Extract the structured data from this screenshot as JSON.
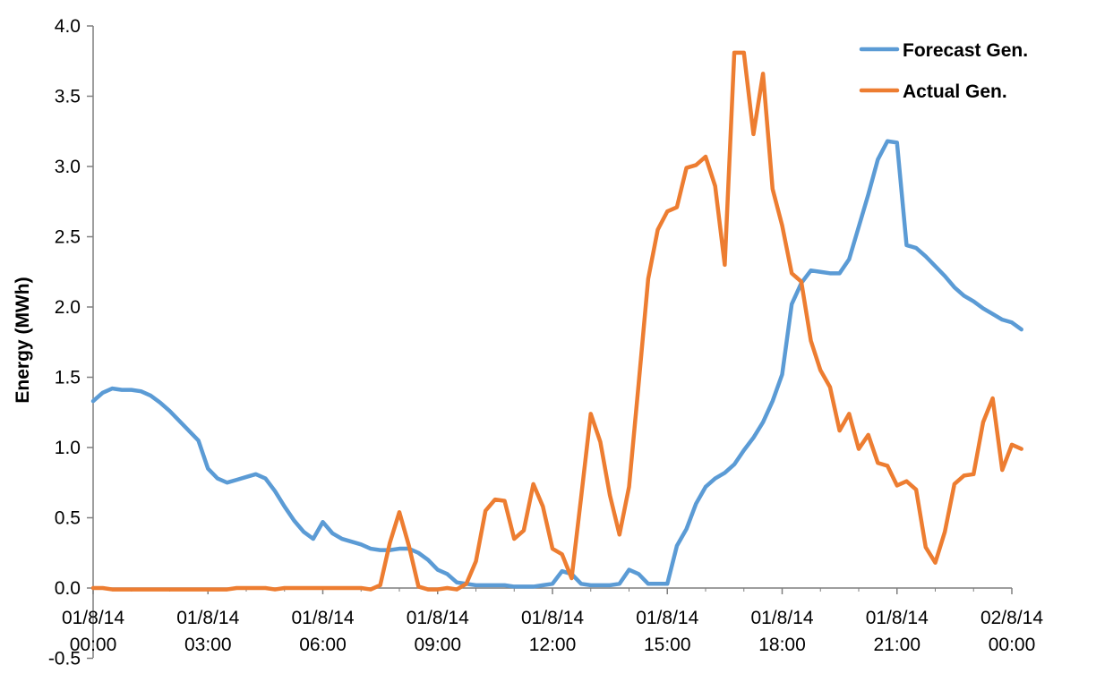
{
  "chart_data": {
    "type": "line",
    "ylabel": "Energy (MWh)",
    "ylim": [
      -0.5,
      4.0
    ],
    "y_ticks": [
      "-0.5",
      "0.0",
      "0.5",
      "1.0",
      "1.5",
      "2.0",
      "2.5",
      "3.0",
      "3.5",
      "4.0"
    ],
    "x_range_hours": [
      0,
      24
    ],
    "x_ticks": [
      {
        "hour": 0,
        "line1": "01/8/14",
        "line2": "00:00"
      },
      {
        "hour": 3,
        "line1": "01/8/14",
        "line2": "03:00"
      },
      {
        "hour": 6,
        "line1": "01/8/14",
        "line2": "06:00"
      },
      {
        "hour": 9,
        "line1": "01/8/14",
        "line2": "09:00"
      },
      {
        "hour": 12,
        "line1": "01/8/14",
        "line2": "12:00"
      },
      {
        "hour": 15,
        "line1": "01/8/14",
        "line2": "15:00"
      },
      {
        "hour": 18,
        "line1": "01/8/14",
        "line2": "18:00"
      },
      {
        "hour": 21,
        "line1": "01/8/14",
        "line2": "21:00"
      },
      {
        "hour": 24,
        "line1": "02/8/14",
        "line2": "00:00"
      }
    ],
    "grid": false,
    "legend_position": "top-right",
    "series": [
      {
        "name": "Forecast Gen.",
        "color": "#5B9BD5",
        "points": [
          [
            0,
            1.33
          ],
          [
            0.25,
            1.39
          ],
          [
            0.5,
            1.42
          ],
          [
            0.75,
            1.41
          ],
          [
            1,
            1.41
          ],
          [
            1.25,
            1.4
          ],
          [
            1.5,
            1.37
          ],
          [
            1.75,
            1.32
          ],
          [
            2,
            1.26
          ],
          [
            2.25,
            1.19
          ],
          [
            2.5,
            1.12
          ],
          [
            2.75,
            1.05
          ],
          [
            3,
            0.85
          ],
          [
            3.25,
            0.78
          ],
          [
            3.5,
            0.75
          ],
          [
            3.75,
            0.77
          ],
          [
            4,
            0.79
          ],
          [
            4.25,
            0.81
          ],
          [
            4.5,
            0.78
          ],
          [
            4.75,
            0.69
          ],
          [
            5,
            0.58
          ],
          [
            5.25,
            0.48
          ],
          [
            5.5,
            0.4
          ],
          [
            5.75,
            0.35
          ],
          [
            6,
            0.47
          ],
          [
            6.25,
            0.39
          ],
          [
            6.5,
            0.35
          ],
          [
            6.75,
            0.33
          ],
          [
            7,
            0.31
          ],
          [
            7.25,
            0.28
          ],
          [
            7.5,
            0.27
          ],
          [
            7.75,
            0.27
          ],
          [
            8,
            0.28
          ],
          [
            8.25,
            0.28
          ],
          [
            8.5,
            0.25
          ],
          [
            8.75,
            0.2
          ],
          [
            9,
            0.13
          ],
          [
            9.25,
            0.1
          ],
          [
            9.5,
            0.04
          ],
          [
            9.75,
            0.03
          ],
          [
            10,
            0.02
          ],
          [
            10.25,
            0.02
          ],
          [
            10.5,
            0.02
          ],
          [
            10.75,
            0.02
          ],
          [
            11,
            0.01
          ],
          [
            11.25,
            0.01
          ],
          [
            11.5,
            0.01
          ],
          [
            11.75,
            0.02
          ],
          [
            12,
            0.03
          ],
          [
            12.25,
            0.12
          ],
          [
            12.5,
            0.1
          ],
          [
            12.75,
            0.03
          ],
          [
            13,
            0.02
          ],
          [
            13.25,
            0.02
          ],
          [
            13.5,
            0.02
          ],
          [
            13.75,
            0.03
          ],
          [
            14,
            0.13
          ],
          [
            14.25,
            0.1
          ],
          [
            14.5,
            0.03
          ],
          [
            14.75,
            0.03
          ],
          [
            15,
            0.03
          ],
          [
            15.25,
            0.3
          ],
          [
            15.5,
            0.42
          ],
          [
            15.75,
            0.6
          ],
          [
            16,
            0.72
          ],
          [
            16.25,
            0.78
          ],
          [
            16.5,
            0.82
          ],
          [
            16.75,
            0.88
          ],
          [
            17,
            0.98
          ],
          [
            17.25,
            1.07
          ],
          [
            17.5,
            1.18
          ],
          [
            17.75,
            1.33
          ],
          [
            18,
            1.52
          ],
          [
            18.25,
            2.02
          ],
          [
            18.5,
            2.17
          ],
          [
            18.75,
            2.26
          ],
          [
            19,
            2.25
          ],
          [
            19.25,
            2.24
          ],
          [
            19.5,
            2.24
          ],
          [
            19.75,
            2.34
          ],
          [
            20,
            2.57
          ],
          [
            20.25,
            2.8
          ],
          [
            20.5,
            3.05
          ],
          [
            20.75,
            3.18
          ],
          [
            21,
            3.17
          ],
          [
            21.25,
            2.44
          ],
          [
            21.5,
            2.42
          ],
          [
            21.75,
            2.36
          ],
          [
            22,
            2.29
          ],
          [
            22.25,
            2.22
          ],
          [
            22.5,
            2.14
          ],
          [
            22.75,
            2.08
          ],
          [
            23,
            2.04
          ],
          [
            23.25,
            1.99
          ],
          [
            23.5,
            1.95
          ],
          [
            23.75,
            1.91
          ],
          [
            24,
            1.89
          ],
          [
            24.25,
            1.84
          ]
        ]
      },
      {
        "name": "Actual Gen.",
        "color": "#ED7D31",
        "points": [
          [
            0,
            0
          ],
          [
            0.25,
            0
          ],
          [
            0.5,
            -0.01
          ],
          [
            0.75,
            -0.01
          ],
          [
            1,
            -0.01
          ],
          [
            1.5,
            -0.01
          ],
          [
            2,
            -0.01
          ],
          [
            2.5,
            -0.01
          ],
          [
            3,
            -0.01
          ],
          [
            3.5,
            -0.01
          ],
          [
            3.75,
            0
          ],
          [
            4,
            0
          ],
          [
            4.5,
            0
          ],
          [
            4.75,
            -0.01
          ],
          [
            5,
            0
          ],
          [
            5.5,
            0
          ],
          [
            6,
            0
          ],
          [
            6.5,
            0
          ],
          [
            7,
            0
          ],
          [
            7.25,
            -0.01
          ],
          [
            7.5,
            0.02
          ],
          [
            7.75,
            0.32
          ],
          [
            8,
            0.54
          ],
          [
            8.25,
            0.3
          ],
          [
            8.5,
            0.01
          ],
          [
            8.75,
            -0.01
          ],
          [
            9,
            -0.01
          ],
          [
            9.25,
            0
          ],
          [
            9.5,
            -0.01
          ],
          [
            9.75,
            0.03
          ],
          [
            10,
            0.19
          ],
          [
            10.25,
            0.55
          ],
          [
            10.5,
            0.63
          ],
          [
            10.75,
            0.62
          ],
          [
            11,
            0.35
          ],
          [
            11.25,
            0.41
          ],
          [
            11.5,
            0.74
          ],
          [
            11.75,
            0.58
          ],
          [
            12,
            0.28
          ],
          [
            12.25,
            0.24
          ],
          [
            12.5,
            0.07
          ],
          [
            12.75,
            0.65
          ],
          [
            13,
            1.24
          ],
          [
            13.25,
            1.04
          ],
          [
            13.5,
            0.66
          ],
          [
            13.75,
            0.38
          ],
          [
            14,
            0.72
          ],
          [
            14.25,
            1.45
          ],
          [
            14.5,
            2.2
          ],
          [
            14.75,
            2.55
          ],
          [
            15,
            2.68
          ],
          [
            15.25,
            2.71
          ],
          [
            15.5,
            2.99
          ],
          [
            15.75,
            3.01
          ],
          [
            16,
            3.07
          ],
          [
            16.25,
            2.86
          ],
          [
            16.5,
            2.3
          ],
          [
            16.75,
            3.81
          ],
          [
            17,
            3.81
          ],
          [
            17.25,
            3.23
          ],
          [
            17.5,
            3.66
          ],
          [
            17.75,
            2.84
          ],
          [
            18,
            2.58
          ],
          [
            18.25,
            2.24
          ],
          [
            18.5,
            2.18
          ],
          [
            18.75,
            1.76
          ],
          [
            19,
            1.55
          ],
          [
            19.25,
            1.43
          ],
          [
            19.5,
            1.12
          ],
          [
            19.75,
            1.24
          ],
          [
            20,
            0.99
          ],
          [
            20.25,
            1.09
          ],
          [
            20.5,
            0.89
          ],
          [
            20.75,
            0.87
          ],
          [
            21,
            0.73
          ],
          [
            21.25,
            0.76
          ],
          [
            21.5,
            0.7
          ],
          [
            21.75,
            0.29
          ],
          [
            22,
            0.18
          ],
          [
            22.25,
            0.4
          ],
          [
            22.5,
            0.74
          ],
          [
            22.75,
            0.8
          ],
          [
            23,
            0.81
          ],
          [
            23.25,
            1.18
          ],
          [
            23.5,
            1.35
          ],
          [
            23.75,
            0.84
          ],
          [
            24,
            1.02
          ],
          [
            24.25,
            0.99
          ]
        ]
      }
    ]
  }
}
